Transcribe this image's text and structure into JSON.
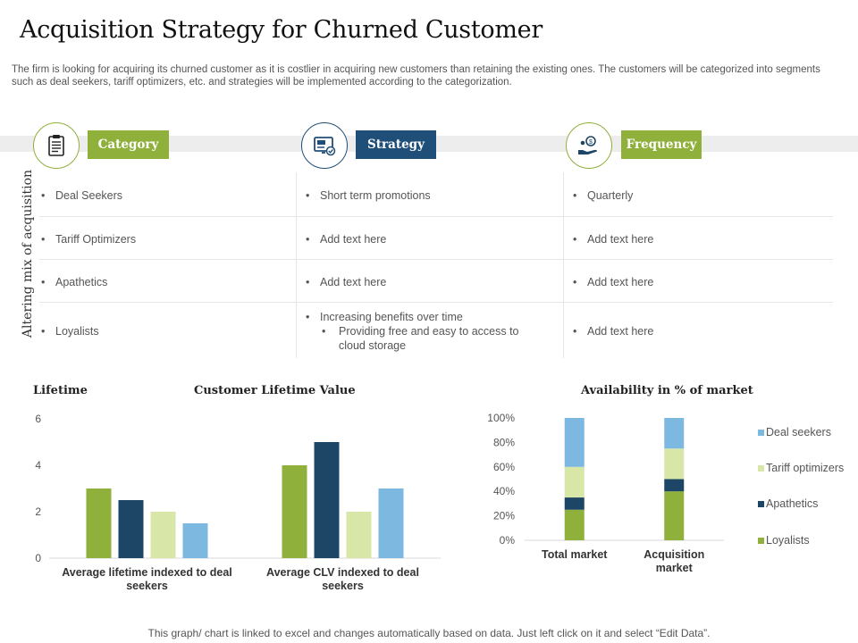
{
  "title": "Acquisition Strategy for Churned Customer",
  "intro": "The firm is looking for acquiring its churned customer as it is costlier in acquiring new customers than retaining the existing ones. The customers will be categorized into segments such as deal seekers, tariff optimizers, etc. and strategies will be implemented according to the categorization.",
  "colors": {
    "green": "#8fb03b",
    "navy": "#1f4e79",
    "light_green": "#d8e6a8",
    "light_blue": "#7db8e0",
    "dark_navy": "#1d4566"
  },
  "headers": {
    "category": {
      "label": "Category",
      "icon": "clipboard-icon"
    },
    "strategy": {
      "label": "Strategy",
      "icon": "monitor-check-icon"
    },
    "frequency": {
      "label": "Frequency",
      "icon": "hand-coin-icon"
    }
  },
  "side_label": "Altering mix of acquisition",
  "bullet": "•",
  "rows": [
    {
      "category": "Deal Seekers",
      "strategy": "Short term promotions",
      "frequency": "Quarterly"
    },
    {
      "category": "Tariff Optimizers",
      "strategy": "Add text here",
      "frequency": "Add text here"
    },
    {
      "category": "Apathetics",
      "strategy": "Add text here",
      "frequency": "Add text here"
    },
    {
      "category": "Loyalists",
      "strategy": "Increasing benefits over time",
      "strategy_sub": "Providing free and easy to access to cloud storage",
      "frequency": "Add text here"
    }
  ],
  "footer": "This graph/ chart is linked to excel and changes automatically based on data. Just left click on it and select “Edit Data”.",
  "chart_data": [
    {
      "type": "bar",
      "title": "Customer Lifetime Value",
      "ylabel": "Lifetime",
      "categories": [
        "Average lifetime indexed to deal seekers",
        "Average CLV indexed to deal seekers"
      ],
      "series": [
        {
          "values": [
            3,
            4
          ],
          "color": "#8fb03b"
        },
        {
          "values": [
            2.5,
            5
          ],
          "color": "#1d4566"
        },
        {
          "values": [
            2,
            2
          ],
          "color": "#d8e6a8"
        },
        {
          "values": [
            1.5,
            3
          ],
          "color": "#7db8e0"
        }
      ],
      "yticks": [
        0,
        2,
        4,
        6
      ],
      "ylim": [
        0,
        6
      ],
      "grid": false,
      "legend": "none"
    },
    {
      "type": "bar",
      "stacked": true,
      "title": "Availability in % of market",
      "categories": [
        "Total market",
        "Acquisition market"
      ],
      "series": [
        {
          "name": "Loyalists",
          "values": [
            25,
            40
          ],
          "color": "#8fb03b"
        },
        {
          "name": "Apathetics",
          "values": [
            10,
            10
          ],
          "color": "#1d4566"
        },
        {
          "name": "Tariff optimizers",
          "values": [
            25,
            25
          ],
          "color": "#d8e6a8"
        },
        {
          "name": "Deal seekers",
          "values": [
            40,
            25
          ],
          "color": "#7db8e0"
        }
      ],
      "yticks": [
        "0%",
        "20%",
        "40%",
        "60%",
        "80%",
        "100%"
      ],
      "ylim": [
        0,
        100
      ],
      "grid": false,
      "legend": "right"
    }
  ]
}
